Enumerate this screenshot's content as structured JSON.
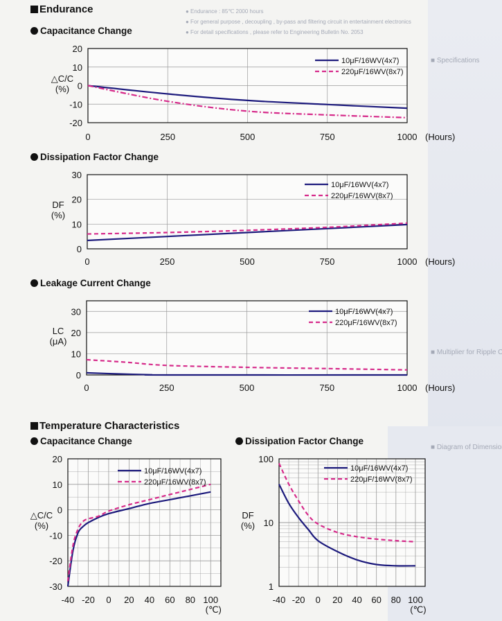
{
  "headings": {
    "endurance": "Endurance",
    "endurance_cap": "Capacitance Change",
    "endurance_df": "Dissipation Factor Change",
    "endurance_lc": "Leakage Current Change",
    "temperature": "Temperature Characteristics",
    "temp_cap": "Capacitance Change",
    "temp_df": "Dissipation Factor Change"
  },
  "background_text": {
    "line1": "● Endurance : 85℃ 2000 hours",
    "line2": "● For general purpose , decoupling , by-pass and filtering circuit in entertainment electronics",
    "line3": "● For detail specifications , please refer to Engineering Bulletin No. 2053",
    "specs": "■ Specifications",
    "multiplier": "■ Multiplier for Ripple Current",
    "diagram": "■ Diagram of Dimensions"
  },
  "colors": {
    "series_10uF": "#1c1a7c",
    "series_220uF": "#d62a8a",
    "grid": "#9a9a9a",
    "axis": "#111111"
  },
  "chart_data": [
    {
      "id": "endurance-capacitance",
      "type": "line",
      "ylabel": [
        "△C/C",
        "(%)"
      ],
      "xunit": "(Hours)",
      "xlim": [
        0,
        1000
      ],
      "ylim": [
        -20,
        20
      ],
      "xticks": [
        "0",
        "250",
        "500",
        "750",
        "1000"
      ],
      "yticks": [
        "20",
        "10",
        "0",
        "-10",
        "-20"
      ],
      "x_scale": "linear",
      "y_scale": "linear",
      "grid": true,
      "legend": "top-right",
      "series": [
        {
          "name": "10μF/16WV(4x7)",
          "style": "solid",
          "x": [
            0,
            250,
            500,
            750,
            1000
          ],
          "y": [
            0,
            -4.5,
            -8,
            -10.2,
            -12.2
          ]
        },
        {
          "name": "220μF/16WV(8x7)",
          "style": "dashdot",
          "x": [
            0,
            250,
            500,
            750,
            1000
          ],
          "y": [
            0,
            -8.5,
            -13.8,
            -15.8,
            -17.3
          ]
        }
      ]
    },
    {
      "id": "endurance-df",
      "type": "line",
      "ylabel": [
        "DF",
        "(%)"
      ],
      "xunit": "(Hours)",
      "xlim": [
        0,
        1000
      ],
      "ylim": [
        0,
        30
      ],
      "xticks": [
        "0",
        "250",
        "500",
        "750",
        "1000"
      ],
      "yticks": [
        "30",
        "20",
        "10",
        "0"
      ],
      "x_scale": "linear",
      "y_scale": "linear",
      "grid": true,
      "legend": "top-right",
      "series": [
        {
          "name": "10μF/16WV(4x7)",
          "style": "solid",
          "x": [
            0,
            250,
            500,
            750,
            1000
          ],
          "y": [
            3.4,
            5,
            6.6,
            8.2,
            9.8
          ]
        },
        {
          "name": "220μF/16WV(8x7)",
          "style": "dash",
          "x": [
            0,
            250,
            500,
            750,
            1000
          ],
          "y": [
            6,
            6.6,
            7.5,
            8.7,
            10.4
          ]
        }
      ]
    },
    {
      "id": "endurance-lc",
      "type": "line",
      "ylabel": [
        "LC",
        "(μA)"
      ],
      "xunit": "(Hours)",
      "xlim": [
        0,
        1000
      ],
      "ylim": [
        0,
        35
      ],
      "xticks": [
        "0",
        "250",
        "500",
        "750",
        "1000"
      ],
      "yticks": [
        "30",
        "20",
        "10",
        "0"
      ],
      "x_scale": "linear",
      "y_scale": "linear",
      "grid": true,
      "legend": "top-right",
      "series": [
        {
          "name": "10μF/16WV(4x7)",
          "style": "solid",
          "x": [
            0,
            100,
            200,
            250,
            1000
          ],
          "y": [
            1,
            0.5,
            0.1,
            0,
            0
          ]
        },
        {
          "name": "220μF/16WV(8x7)",
          "style": "dash",
          "x": [
            0,
            125,
            250,
            500,
            750,
            1000
          ],
          "y": [
            7.2,
            6,
            4.5,
            3.6,
            3,
            2.4
          ]
        }
      ]
    },
    {
      "id": "temperature-capacitance",
      "type": "line",
      "ylabel": [
        "△C/C",
        "(%)"
      ],
      "xunit": "(℃)",
      "xlim": [
        -40,
        110
      ],
      "ylim": [
        -30,
        20
      ],
      "xticks": [
        "-40",
        "-20",
        "0",
        "20",
        "40",
        "60",
        "80",
        "100"
      ],
      "yticks": [
        "20",
        "10",
        "0",
        "-10",
        "-20",
        "-30"
      ],
      "x_scale": "linear",
      "y_scale": "linear",
      "grid": true,
      "legend": "top-right",
      "series": [
        {
          "name": "10μF/16WV(4x7)",
          "style": "solid",
          "x": [
            -40,
            -35,
            -30,
            -25,
            -20,
            -10,
            0,
            20,
            40,
            60,
            80,
            100
          ],
          "y": [
            -30,
            -16,
            -9,
            -6.5,
            -5,
            -3,
            -1.5,
            0.5,
            2.5,
            4,
            5.5,
            7
          ]
        },
        {
          "name": "220μF/16WV(8x7)",
          "style": "dash",
          "x": [
            -40,
            -35,
            -30,
            -25,
            -20,
            -10,
            0,
            20,
            40,
            60,
            80,
            100
          ],
          "y": [
            -28,
            -14,
            -7.5,
            -4.5,
            -3.5,
            -2.5,
            -0.5,
            2,
            4,
            6,
            8,
            10
          ]
        }
      ]
    },
    {
      "id": "temperature-df",
      "type": "line",
      "ylabel": [
        "DF",
        "(%)"
      ],
      "xunit": "(℃)",
      "xlim": [
        -40,
        110
      ],
      "ylim": [
        1,
        100
      ],
      "xticks": [
        "-40",
        "-20",
        "0",
        "20",
        "40",
        "60",
        "80",
        "100"
      ],
      "yticks": [
        "100",
        "10",
        "1"
      ],
      "x_scale": "linear",
      "y_scale": "log",
      "grid": true,
      "legend": "top-right",
      "series": [
        {
          "name": "10μF/16WV(4x7)",
          "style": "solid",
          "x": [
            -40,
            -30,
            -20,
            -10,
            0,
            20,
            40,
            60,
            80,
            100
          ],
          "y": [
            40,
            20,
            12,
            7.8,
            5.2,
            3.5,
            2.6,
            2.2,
            2.1,
            2.1
          ]
        },
        {
          "name": "220μF/16WV(8x7)",
          "style": "dash",
          "x": [
            -40,
            -30,
            -20,
            -10,
            0,
            20,
            40,
            60,
            80,
            100
          ],
          "y": [
            85,
            40,
            22,
            13,
            9.5,
            7,
            6,
            5.5,
            5.2,
            5
          ]
        }
      ]
    }
  ]
}
